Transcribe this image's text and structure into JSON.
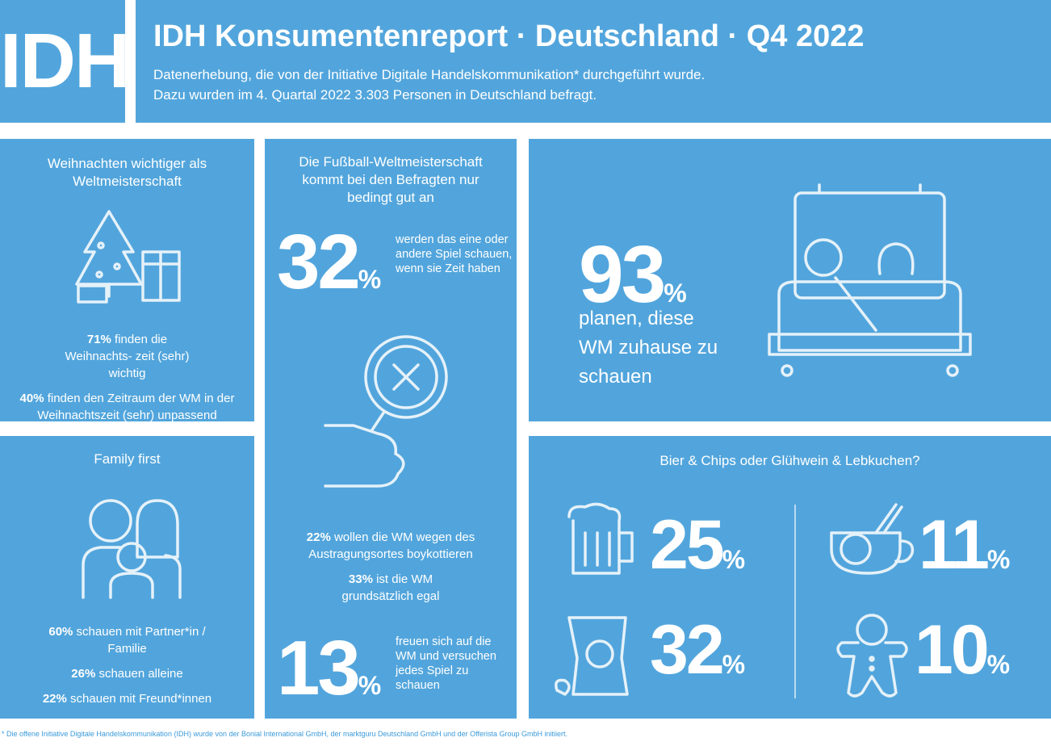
{
  "header": {
    "logo": "IDH",
    "title": "IDH Konsumentenreport · Deutschland · Q4 2022",
    "subtitle": [
      "Datenerhebung, die von der Initiative Digitale Handelskommunikation* durchgeführt wurde.",
      "Dazu wurden im 4. Quartal 2022 3.303 Personen in Deutschland befragt."
    ]
  },
  "christmas": {
    "title": "Weihnachten wichtiger als Weltmeisterschaft",
    "facts": [
      {
        "bold": "71%",
        "text": " finden die Weihnachts- zeit (sehr) wichtig"
      },
      {
        "bold": "40%",
        "text": " finden den Zeitraum der WM in der Weihnachtszeit (sehr) unpassend"
      }
    ]
  },
  "family": {
    "title": "Family first",
    "facts": [
      {
        "bold": "60%",
        "text": " schauen mit Partner*in / Familie"
      },
      {
        "bold": "26%",
        "text": " schauen alleine"
      },
      {
        "bold": "22%",
        "text": " schauen mit Freund*innen"
      }
    ]
  },
  "football": {
    "title": "Die Fußball-Weltmeisterschaft kommt bei den Befragten nur bedingt gut an",
    "stat_top": {
      "number": "32",
      "unit": "%",
      "text": "werden das eine oder andere Spiel schauen, wenn sie Zeit haben"
    },
    "facts": [
      {
        "bold": "22%",
        "text": " wollen die WM wegen des Austragungsortes boykottieren"
      },
      {
        "bold": "33%",
        "text": " ist die WM grundsätzlich egal"
      }
    ],
    "stat_bottom": {
      "number": "13",
      "unit": "%",
      "text": "freuen sich auf die WM und versuchen jedes Spiel zu schauen"
    }
  },
  "home": {
    "number": "93",
    "unit": "%",
    "text": "planen, diese WM zuhause zu schauen"
  },
  "snacks": {
    "title": "Bier & Chips oder Glühwein & Lebkuchen?",
    "items": [
      {
        "number": "25",
        "unit": "%"
      },
      {
        "number": "11",
        "unit": "%"
      },
      {
        "number": "32",
        "unit": "%"
      },
      {
        "number": "10",
        "unit": "%"
      }
    ]
  },
  "footer": "* Die offene Initiative Digitale Handelskommunikation (IDH) wurde von der Bonial International GmbH, der marktguru Deutschland GmbH und der Offerista Group GmbH initiiert."
}
